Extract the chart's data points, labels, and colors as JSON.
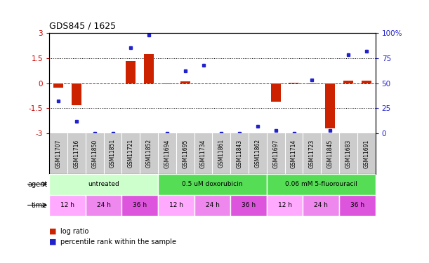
{
  "title": "GDS845 / 1625",
  "samples": [
    "GSM11707",
    "GSM11716",
    "GSM11850",
    "GSM11851",
    "GSM11721",
    "GSM11852",
    "GSM11694",
    "GSM11695",
    "GSM11734",
    "GSM11861",
    "GSM11843",
    "GSM11862",
    "GSM11697",
    "GSM11714",
    "GSM11723",
    "GSM11845",
    "GSM11683",
    "GSM11691"
  ],
  "log_ratio": [
    -0.25,
    -1.3,
    0.0,
    0.0,
    1.3,
    1.75,
    -0.05,
    0.12,
    0.0,
    0.0,
    0.0,
    0.0,
    -1.1,
    0.04,
    -0.05,
    -2.7,
    0.15,
    0.13
  ],
  "percentile": [
    32,
    12,
    0,
    0,
    85,
    98,
    0,
    62,
    68,
    0,
    0,
    7,
    3,
    0,
    53,
    3,
    78,
    82
  ],
  "ylim_left": [
    -3,
    3
  ],
  "ylim_right": [
    0,
    100
  ],
  "left_yticks": [
    -3,
    -1.5,
    0,
    1.5,
    3
  ],
  "right_yticks": [
    0,
    25,
    50,
    75,
    100
  ],
  "bar_color": "#cc2200",
  "dot_color": "#2222cc",
  "agent_groups": [
    {
      "label": "untreated",
      "start": 0,
      "end": 6,
      "color": "#ccffcc"
    },
    {
      "label": "0.5 uM doxorubicin",
      "start": 6,
      "end": 12,
      "color": "#44dd44"
    },
    {
      "label": "0.06 mM 5-fluorouracil",
      "start": 12,
      "end": 18,
      "color": "#44dd44"
    }
  ],
  "time_groups": [
    {
      "label": "12 h",
      "start": 0,
      "end": 2,
      "color": "#ffaaff"
    },
    {
      "label": "24 h",
      "start": 2,
      "end": 4,
      "color": "#ee88ee"
    },
    {
      "label": "36 h",
      "start": 4,
      "end": 6,
      "color": "#dd55dd"
    },
    {
      "label": "12 h",
      "start": 6,
      "end": 8,
      "color": "#ffaaff"
    },
    {
      "label": "24 h",
      "start": 8,
      "end": 10,
      "color": "#ee88ee"
    },
    {
      "label": "36 h",
      "start": 10,
      "end": 12,
      "color": "#dd55dd"
    },
    {
      "label": "12 h",
      "start": 12,
      "end": 14,
      "color": "#ffaaff"
    },
    {
      "label": "24 h",
      "start": 14,
      "end": 16,
      "color": "#ee88ee"
    },
    {
      "label": "36 h",
      "start": 16,
      "end": 18,
      "color": "#dd55dd"
    }
  ],
  "sample_band_color": "#cccccc",
  "background_color": "#ffffff",
  "legend_bar_color": "#cc2200",
  "legend_dot_color": "#2222cc"
}
